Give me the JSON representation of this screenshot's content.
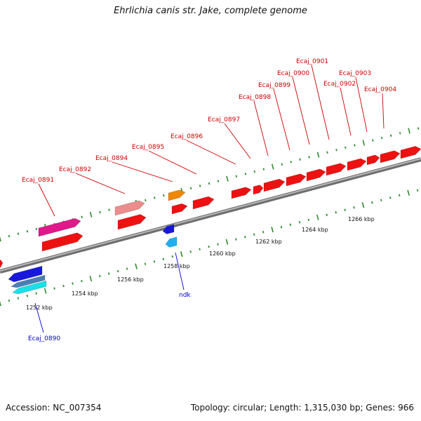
{
  "title": "Ehrlichia canis str. Jake, complete genome",
  "footer": {
    "accession": "Accession: NC_007354",
    "summary": "Topology: circular; Length: 1,315,030 bp; Genes: 966"
  },
  "colors": {
    "backbone": "#7f7f7f",
    "tick": "#2e8b2e",
    "forward_label": "#cc0000",
    "reverse_label": "#0000cc",
    "forward_gene": "#ee1111",
    "reverse_gene": "#1818dd"
  },
  "scale_labels": [
    "1252 kbp",
    "1254 kbp",
    "1256 kbp",
    "1258 kbp",
    "1260 kbp",
    "1262 kbp",
    "1264 kbp",
    "1266 kbp"
  ],
  "forward_labels": [
    "Ecaj_0891",
    "Ecaj_0892",
    "Ecaj_0894",
    "Ecaj_0895",
    "Ecaj_0896",
    "Ecaj_0897",
    "Ecaj_0898",
    "Ecaj_0899",
    "Ecaj_0900",
    "Ecaj_0901",
    "Ecaj_0902",
    "Ecaj_0903",
    "Ecaj_0904"
  ],
  "reverse_labels": [
    "Ecaj_0890",
    "ndk"
  ]
}
